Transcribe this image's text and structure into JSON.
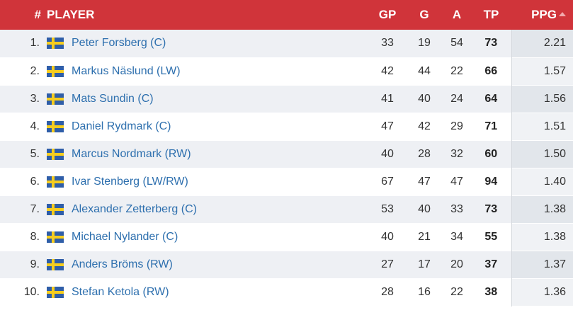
{
  "header": {
    "rank": "#",
    "player": "PLAYER",
    "gp": "GP",
    "g": "G",
    "a": "A",
    "tp": "TP",
    "ppg": "PPG"
  },
  "rows": [
    {
      "rank": "1.",
      "name": "Peter Forsberg (C)",
      "gp": "33",
      "g": "19",
      "a": "54",
      "tp": "73",
      "ppg": "2.21"
    },
    {
      "rank": "2.",
      "name": "Markus Näslund (LW)",
      "gp": "42",
      "g": "44",
      "a": "22",
      "tp": "66",
      "ppg": "1.57"
    },
    {
      "rank": "3.",
      "name": "Mats Sundin (C)",
      "gp": "41",
      "g": "40",
      "a": "24",
      "tp": "64",
      "ppg": "1.56"
    },
    {
      "rank": "4.",
      "name": "Daniel Rydmark (C)",
      "gp": "47",
      "g": "42",
      "a": "29",
      "tp": "71",
      "ppg": "1.51"
    },
    {
      "rank": "5.",
      "name": "Marcus Nordmark (RW)",
      "gp": "40",
      "g": "28",
      "a": "32",
      "tp": "60",
      "ppg": "1.50"
    },
    {
      "rank": "6.",
      "name": "Ivar Stenberg (LW/RW)",
      "gp": "67",
      "g": "47",
      "a": "47",
      "tp": "94",
      "ppg": "1.40"
    },
    {
      "rank": "7.",
      "name": "Alexander Zetterberg (C)",
      "gp": "53",
      "g": "40",
      "a": "33",
      "tp": "73",
      "ppg": "1.38"
    },
    {
      "rank": "8.",
      "name": "Michael Nylander (C)",
      "gp": "40",
      "g": "21",
      "a": "34",
      "tp": "55",
      "ppg": "1.38"
    },
    {
      "rank": "9.",
      "name": "Anders Bröms (RW)",
      "gp": "27",
      "g": "17",
      "a": "20",
      "tp": "37",
      "ppg": "1.37"
    },
    {
      "rank": "10.",
      "name": "Stefan Ketola (RW)",
      "gp": "28",
      "g": "16",
      "a": "22",
      "tp": "38",
      "ppg": "1.36"
    }
  ],
  "flag_icon": "sweden-flag-icon",
  "sort_icon": "sort-ascending-icon",
  "colors": {
    "header_bg": "#d0343a",
    "link": "#2d6fae",
    "row_alt": "#eef0f4"
  }
}
